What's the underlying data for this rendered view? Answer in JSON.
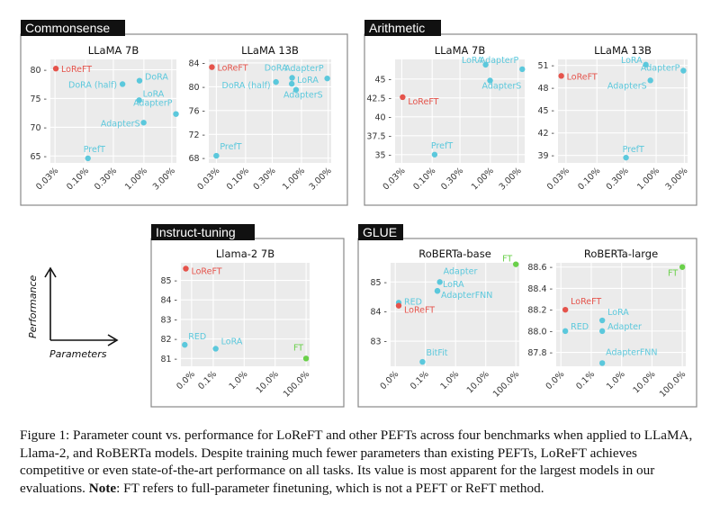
{
  "colors": {
    "lorefit": "#e5534b",
    "peft": "#5bc8dc",
    "ft": "#6ad04a",
    "panel_bg": "#ebebeb",
    "title_bg": "#111111"
  },
  "axes_legend": {
    "y_label": "Performance",
    "x_label": "Parameters"
  },
  "caption": {
    "main": "Figure 1: Parameter count vs. performance for LoReFT and other PEFTs across four benchmarks when applied to LLaMA, Llama-2, and RoBERTa models. Despite training much fewer parameters than existing PEFTs, LoReFT achieves competitive or even state-of-the-art performance on all tasks. Its value is most apparent for the largest models in our evaluations.",
    "note_label": "Note",
    "note_text": ": FT refers to full-parameter finetuning, which is not a PEFT or ReFT method."
  },
  "chart_data": [
    {
      "group": "Commonsense",
      "title": "LLaMA 7B",
      "type": "scatter",
      "x_scale": "log",
      "xticks": [
        0.03,
        0.1,
        0.3,
        1.0,
        3.0
      ],
      "xtick_labels": [
        "0.03%",
        "0.10%",
        "0.30%",
        "1.00%",
        "3.00%"
      ],
      "xlim": [
        0.025,
        3.6
      ],
      "yticks": [
        65,
        70,
        75,
        80
      ],
      "ytick_labels": [
        "65",
        "70",
        "75",
        "80"
      ],
      "ylim": [
        63.8,
        81.8
      ],
      "points": [
        {
          "label": "LoReFT",
          "x": 0.031,
          "y": 80.2,
          "kind": "loreft"
        },
        {
          "label": "DoRA",
          "x": 0.84,
          "y": 78.1,
          "kind": "peft"
        },
        {
          "label": "DoRA (half)",
          "x": 0.43,
          "y": 77.5,
          "kind": "peft"
        },
        {
          "label": "LoRA",
          "x": 0.83,
          "y": 74.7,
          "kind": "peft"
        },
        {
          "label": "AdapterP",
          "x": 3.54,
          "y": 72.3,
          "kind": "peft"
        },
        {
          "label": "AdapterS",
          "x": 0.99,
          "y": 70.8,
          "kind": "peft"
        },
        {
          "label": "PrefT",
          "x": 0.11,
          "y": 64.6,
          "kind": "peft"
        }
      ]
    },
    {
      "group": "Commonsense",
      "title": "LLaMA 13B",
      "type": "scatter",
      "x_scale": "log",
      "xticks": [
        0.03,
        0.1,
        0.3,
        1.0,
        3.0
      ],
      "xtick_labels": [
        "0.03%",
        "0.10%",
        "0.30%",
        "1.00%",
        "3.00%"
      ],
      "xlim": [
        0.022,
        3.4
      ],
      "yticks": [
        68,
        72,
        76,
        80,
        84
      ],
      "ytick_labels": [
        "68",
        "72",
        "76",
        "80",
        "84"
      ],
      "ylim": [
        67.2,
        84.6
      ],
      "points": [
        {
          "label": "LoReFT",
          "x": 0.025,
          "y": 83.3,
          "kind": "loreft"
        },
        {
          "label": "DoRA",
          "x": 0.68,
          "y": 81.5,
          "kind": "peft"
        },
        {
          "label": "AdapterP",
          "x": 2.89,
          "y": 81.4,
          "kind": "peft"
        },
        {
          "label": "LoRA",
          "x": 0.67,
          "y": 80.5,
          "kind": "peft"
        },
        {
          "label": "DoRA (half)",
          "x": 0.35,
          "y": 80.8,
          "kind": "peft"
        },
        {
          "label": "AdapterS",
          "x": 0.8,
          "y": 79.5,
          "kind": "peft"
        },
        {
          "label": "PrefT",
          "x": 0.03,
          "y": 68.4,
          "kind": "peft"
        }
      ]
    },
    {
      "group": "Arithmetic",
      "title": "LLaMA 7B",
      "type": "scatter",
      "x_scale": "log",
      "xticks": [
        0.03,
        0.1,
        0.3,
        1.0,
        3.0
      ],
      "xtick_labels": [
        "0.03%",
        "0.10%",
        "0.30%",
        "1.00%",
        "3.00%"
      ],
      "xlim": [
        0.023,
        3.9
      ],
      "yticks": [
        35,
        37.5,
        40,
        42.5,
        45
      ],
      "ytick_labels": [
        "35",
        "37.5",
        "40",
        "42.5",
        "45"
      ],
      "ylim": [
        33.9,
        47.6
      ],
      "points": [
        {
          "label": "LoReFT",
          "x": 0.031,
          "y": 42.6,
          "kind": "loreft"
        },
        {
          "label": "LoRA",
          "x": 0.83,
          "y": 46.9,
          "kind": "peft"
        },
        {
          "label": "AdapterP",
          "x": 3.54,
          "y": 46.3,
          "kind": "peft"
        },
        {
          "label": "AdapterS",
          "x": 0.99,
          "y": 44.8,
          "kind": "peft"
        },
        {
          "label": "PrefT",
          "x": 0.11,
          "y": 35.0,
          "kind": "peft"
        }
      ]
    },
    {
      "group": "Arithmetic",
      "title": "LLaMA 13B",
      "type": "scatter",
      "x_scale": "log",
      "xticks": [
        0.03,
        0.1,
        0.3,
        1.0,
        3.0
      ],
      "xtick_labels": [
        "0.03%",
        "0.10%",
        "0.30%",
        "1.00%",
        "3.00%"
      ],
      "xlim": [
        0.022,
        3.4
      ],
      "yticks": [
        39,
        42,
        45,
        48,
        51
      ],
      "ytick_labels": [
        "39",
        "42",
        "45",
        "48",
        "51"
      ],
      "ylim": [
        38.0,
        51.8
      ],
      "points": [
        {
          "label": "LoReFT",
          "x": 0.025,
          "y": 49.6,
          "kind": "loreft"
        },
        {
          "label": "LoRA",
          "x": 0.67,
          "y": 51.1,
          "kind": "peft"
        },
        {
          "label": "AdapterP",
          "x": 2.89,
          "y": 50.3,
          "kind": "peft"
        },
        {
          "label": "AdapterS",
          "x": 0.8,
          "y": 49.0,
          "kind": "peft"
        },
        {
          "label": "PrefT",
          "x": 0.31,
          "y": 38.7,
          "kind": "peft"
        }
      ]
    },
    {
      "group": "Instruct-tuning",
      "title": "Llama-2 7B",
      "type": "scatter",
      "x_scale": "log",
      "xticks": [
        0.1,
        1.0,
        10.0,
        100.0
      ],
      "xtick_labels": [
        "0.0%",
        "0.1%",
        "1.0%",
        "10.0%",
        "100.0%"
      ],
      "xtick_positions": [
        0.02,
        0.1,
        1.0,
        10.0,
        100.0
      ],
      "xlim": [
        0.009,
        130
      ],
      "yticks": [
        81,
        82,
        83,
        84,
        85
      ],
      "ytick_labels": [
        "81",
        "82",
        "83",
        "84",
        "85"
      ],
      "ylim": [
        80.6,
        85.9
      ],
      "points": [
        {
          "label": "LoReFT",
          "x": 0.013,
          "y": 85.6,
          "kind": "loreft"
        },
        {
          "label": "RED",
          "x": 0.012,
          "y": 81.7,
          "kind": "peft"
        },
        {
          "label": "LoRA",
          "x": 0.12,
          "y": 81.5,
          "kind": "peft"
        },
        {
          "label": "FT",
          "x": 100,
          "y": 81.0,
          "kind": "ft"
        }
      ]
    },
    {
      "group": "GLUE",
      "title": "RoBERTa-base",
      "type": "scatter",
      "x_scale": "log",
      "xtick_labels": [
        "0.0%",
        "0.1%",
        "1.0%",
        "10.0%",
        "100.0%"
      ],
      "xtick_positions": [
        0.01,
        0.1,
        1.0,
        10.0,
        100.0
      ],
      "xlim": [
        0.007,
        130
      ],
      "yticks": [
        83,
        84,
        85
      ],
      "ytick_labels": [
        "83",
        "84",
        "85"
      ],
      "ylim": [
        82.15,
        85.65
      ],
      "points": [
        {
          "label": "FT",
          "x": 100,
          "y": 85.6,
          "kind": "ft"
        },
        {
          "label": "Adapter",
          "x": 0.3,
          "y": 85.0,
          "kind": "peft"
        },
        {
          "label": "LoRA",
          "x": 0.25,
          "y": 84.7,
          "kind": "peft"
        },
        {
          "label": "AdapterFNN",
          "x": 0.25,
          "y": 84.7,
          "kind": "peft"
        },
        {
          "label": "RED",
          "x": 0.013,
          "y": 84.3,
          "kind": "peft"
        },
        {
          "label": "LoReFT",
          "x": 0.013,
          "y": 84.2,
          "kind": "loreft"
        },
        {
          "label": "BitFit",
          "x": 0.08,
          "y": 82.3,
          "kind": "peft"
        }
      ]
    },
    {
      "group": "GLUE",
      "title": "RoBERTa-large",
      "type": "scatter",
      "x_scale": "log",
      "xtick_labels": [
        "0.0%",
        "0.1%",
        "1.0%",
        "10.0%",
        "100.0%"
      ],
      "xtick_positions": [
        0.01,
        0.1,
        1.0,
        10.0,
        100.0
      ],
      "xlim": [
        0.007,
        130
      ],
      "yticks": [
        87.8,
        88.0,
        88.2,
        88.4,
        88.6
      ],
      "ytick_labels": [
        "87.8",
        "88.0",
        "88.2",
        "88.4",
        "88.6"
      ],
      "ylim": [
        87.67,
        88.64
      ],
      "points": [
        {
          "label": "FT",
          "x": 100,
          "y": 88.6,
          "kind": "ft"
        },
        {
          "label": "LoReFT",
          "x": 0.014,
          "y": 88.2,
          "kind": "loreft"
        },
        {
          "label": "LoRA",
          "x": 0.23,
          "y": 88.1,
          "kind": "peft"
        },
        {
          "label": "RED",
          "x": 0.014,
          "y": 88.0,
          "kind": "peft"
        },
        {
          "label": "Adapter",
          "x": 0.23,
          "y": 88.0,
          "kind": "peft"
        },
        {
          "label": "AdapterFNN",
          "x": 0.23,
          "y": 87.7,
          "kind": "peft"
        }
      ]
    }
  ]
}
